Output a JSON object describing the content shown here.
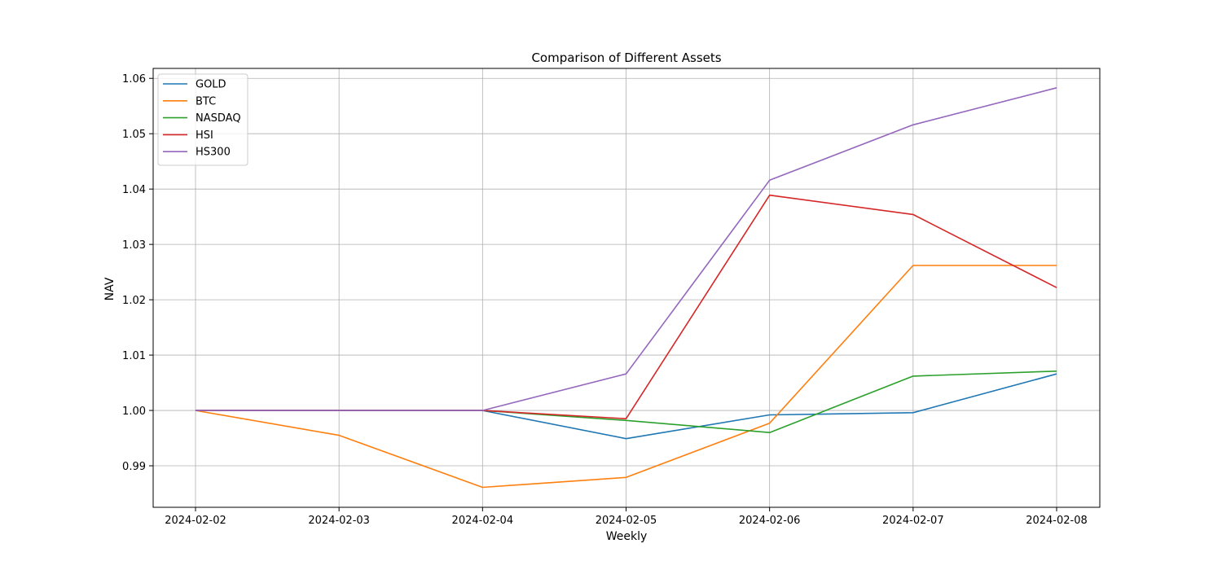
{
  "chart_data": {
    "type": "line",
    "title": "Comparison of Different Assets",
    "xlabel": "Weekly",
    "ylabel": "NAV",
    "categories": [
      "2024-02-02",
      "2024-02-03",
      "2024-02-04",
      "2024-02-05",
      "2024-02-06",
      "2024-02-07",
      "2024-02-08"
    ],
    "y_ticks": [
      "0.99",
      "1.00",
      "1.01",
      "1.02",
      "1.03",
      "1.04",
      "1.05",
      "1.06"
    ],
    "ylim": [
      0.9825,
      1.0618
    ],
    "grid": true,
    "legend_position": "upper-left",
    "series": [
      {
        "name": "GOLD",
        "color": "#1f77b4",
        "values": [
          1.0,
          1.0,
          1.0,
          0.9949,
          0.9992,
          0.9996,
          1.0066
        ]
      },
      {
        "name": "BTC",
        "color": "#ff7f0e",
        "values": [
          1.0,
          0.9955,
          0.9861,
          0.9879,
          0.9977,
          1.0262,
          1.0262
        ]
      },
      {
        "name": "NASDAQ",
        "color": "#2ca02c",
        "values": [
          1.0,
          1.0,
          1.0,
          0.9982,
          0.996,
          1.0062,
          1.0071
        ]
      },
      {
        "name": "HSI",
        "color": "#d62728",
        "values": [
          1.0,
          1.0,
          1.0,
          0.9985,
          1.0389,
          1.0354,
          1.0222
        ]
      },
      {
        "name": "HS300",
        "color": "#9467bd",
        "values": [
          1.0,
          1.0,
          1.0,
          1.0066,
          1.0416,
          1.0516,
          1.0583
        ]
      }
    ]
  }
}
